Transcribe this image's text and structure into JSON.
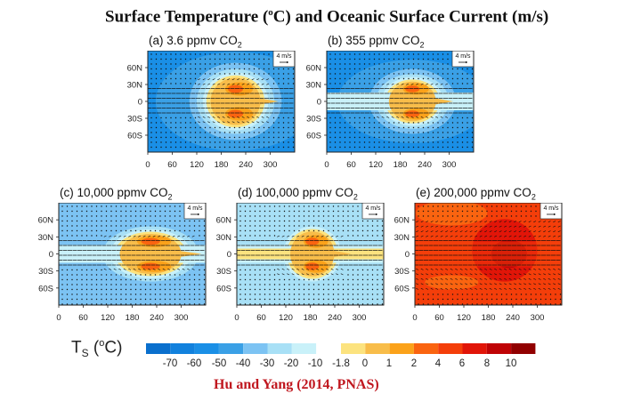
{
  "title": {
    "prefix": "Surface Temperature (",
    "sup": "o",
    "suffix": "C) and Oceanic Surface Current (m/s)"
  },
  "credit": "Hu and Yang (2014, PNAS)",
  "colorbar": {
    "label_main": "T",
    "label_sub": "S",
    "label_paren_open": " (",
    "label_sup": "o",
    "label_unit": "C)",
    "cold_colors": [
      "#0a6fcd",
      "#1281dd",
      "#1a8fe6",
      "#3aa0e6",
      "#7cc3f3",
      "#a8e0f6",
      "#c9f1f9"
    ],
    "warm_colors": [
      "#fce37f",
      "#f8bd4a",
      "#fba21a",
      "#fa6410",
      "#f43e0a",
      "#e11508",
      "#bf0305",
      "#910000"
    ],
    "ticks": [
      "-70",
      "-60",
      "-50",
      "-40",
      "-30",
      "-20",
      "-10",
      "-1.8",
      "0",
      "1",
      "2",
      "4",
      "6",
      "8",
      "10"
    ]
  },
  "chart_data": [
    {
      "type": "heatmap",
      "panel": "a",
      "title_prefix": "(a) 3.6 ppmv CO",
      "title_sub": "2",
      "co2_ppmv": 3.6,
      "x_ticks": [
        "0",
        "60",
        "120",
        "180",
        "240",
        "300"
      ],
      "y_ticks": [
        "60N",
        "30N",
        "0",
        "30S",
        "60S"
      ],
      "xlim": [
        0,
        360
      ],
      "ylim": [
        -90,
        90
      ],
      "reference_vector": "4 m/s",
      "background_level": -50,
      "warm_peak_level": 4,
      "warm_lon_range": [
        130,
        300
      ],
      "warm_lat_range": [
        -45,
        50
      ]
    },
    {
      "type": "heatmap",
      "panel": "b",
      "title_prefix": "(b) 355 ppmv CO",
      "title_sub": "2",
      "co2_ppmv": 355,
      "x_ticks": [
        "0",
        "60",
        "120",
        "180",
        "240",
        "300"
      ],
      "y_ticks": [
        "60N",
        "30N",
        "0",
        "30S",
        "60S"
      ],
      "xlim": [
        0,
        360
      ],
      "ylim": [
        -90,
        90
      ],
      "reference_vector": "4 m/s",
      "background_level": -50,
      "warm_peak_level": 4,
      "warm_lon_range": [
        130,
        290
      ],
      "warm_lat_range": [
        -40,
        40
      ]
    },
    {
      "type": "heatmap",
      "panel": "c",
      "title_prefix": "(c) 10,000 ppmv CO",
      "title_sub": "2",
      "co2_ppmv": 10000,
      "x_ticks": [
        "0",
        "60",
        "120",
        "180",
        "240",
        "300"
      ],
      "y_ticks": [
        "60N",
        "30N",
        "0",
        "30S",
        "60S"
      ],
      "xlim": [
        0,
        360
      ],
      "ylim": [
        -90,
        90
      ],
      "reference_vector": "4 m/s",
      "background_level": -30,
      "warm_peak_level": 4,
      "warm_lon_range": [
        120,
        330
      ],
      "warm_lat_range": [
        -40,
        40
      ]
    },
    {
      "type": "heatmap",
      "panel": "d",
      "title_prefix": "(d) 100,000 ppmv CO",
      "title_sub": "2",
      "co2_ppmv": 100000,
      "x_ticks": [
        "0",
        "60",
        "120",
        "180",
        "240",
        "300"
      ],
      "y_ticks": [
        "60N",
        "30N",
        "0",
        "30S",
        "60S"
      ],
      "xlim": [
        0,
        360
      ],
      "ylim": [
        -90,
        90
      ],
      "reference_vector": "4 m/s",
      "background_level": -20,
      "warm_peak_level": 4,
      "warm_lon_range": [
        110,
        260
      ],
      "warm_lat_range": [
        -45,
        45
      ]
    },
    {
      "type": "heatmap",
      "panel": "e",
      "title_prefix": "(e) 200,000 ppmv CO",
      "title_sub": "2",
      "co2_ppmv": 200000,
      "x_ticks": [
        "0",
        "60",
        "120",
        "180",
        "240",
        "300"
      ],
      "y_ticks": [
        "60N",
        "30N",
        "0",
        "30S",
        "60S"
      ],
      "xlim": [
        0,
        360
      ],
      "ylim": [
        -90,
        90
      ],
      "reference_vector": "4 m/s",
      "background_level": 4,
      "warm_peak_level": 10,
      "warm_lon_range": [
        140,
        300
      ],
      "warm_lat_range": [
        -50,
        60
      ]
    }
  ]
}
